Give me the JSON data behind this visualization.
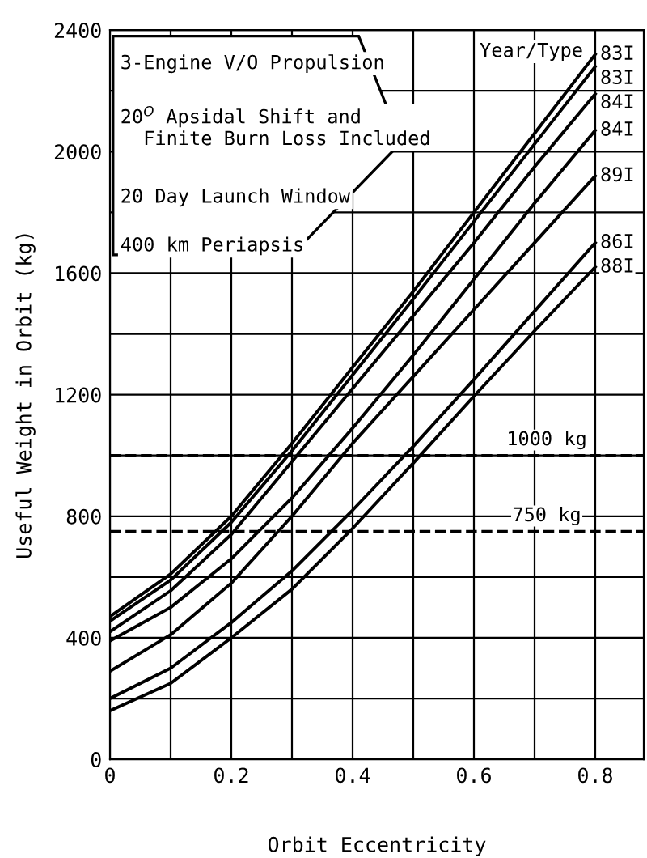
{
  "chart_data": {
    "type": "line",
    "xlabel": "Orbit Eccentricity",
    "ylabel": "Useful Weight in Orbit (kg)",
    "legend_title": "Year/Type",
    "x": [
      0,
      0.1,
      0.2,
      0.3,
      0.4,
      0.5,
      0.6,
      0.7,
      0.8
    ],
    "series": [
      {
        "name": "83I",
        "color": "#000000",
        "values": [
          470,
          610,
          800,
          1040,
          1290,
          1540,
          1800,
          2060,
          2320
        ]
      },
      {
        "name": "83I",
        "color": "#000000",
        "values": [
          455,
          590,
          780,
          1015,
          1265,
          1515,
          1770,
          2025,
          2280
        ]
      },
      {
        "name": "84I",
        "color": "#000000",
        "values": [
          420,
          555,
          740,
          980,
          1220,
          1460,
          1700,
          1950,
          2190
        ]
      },
      {
        "name": "84I",
        "color": "#000000",
        "values": [
          390,
          500,
          660,
          860,
          1090,
          1330,
          1580,
          1830,
          2070
        ]
      },
      {
        "name": "89I",
        "color": "#000000",
        "values": [
          290,
          410,
          580,
          800,
          1040,
          1260,
          1480,
          1700,
          1920
        ]
      },
      {
        "name": "86I",
        "color": "#000000",
        "values": [
          200,
          300,
          450,
          620,
          820,
          1030,
          1250,
          1475,
          1700
        ]
      },
      {
        "name": "88I",
        "color": "#000000",
        "values": [
          160,
          250,
          400,
          560,
          760,
          975,
          1195,
          1410,
          1620
        ]
      }
    ],
    "xlim": [
      0,
      0.88
    ],
    "ylim": [
      0,
      2400
    ],
    "xticks": [
      0,
      {
        "value": 0.1,
        "label": null
      },
      {
        "value": 0.2,
        "label": "0.2"
      },
      {
        "value": 0.3,
        "label": null
      },
      {
        "value": 0.4,
        "label": "0.4"
      },
      {
        "value": 0.5,
        "label": null
      },
      {
        "value": 0.6,
        "label": "0.6"
      },
      {
        "value": 0.7,
        "label": null
      },
      {
        "value": 0.8,
        "label": "0.8"
      }
    ],
    "yticks": [
      0,
      {
        "value": 200,
        "label": null
      },
      400,
      {
        "value": 600,
        "label": null
      },
      800,
      {
        "value": 1000,
        "label": null
      },
      1200,
      {
        "value": 1400,
        "label": null
      },
      1600,
      {
        "value": 1800,
        "label": null
      },
      2000,
      {
        "value": 2200,
        "label": null
      },
      2400
    ],
    "ref_lines": [
      {
        "axis": "y",
        "value": 1000,
        "label": "1000 kg",
        "line_style": "dashed",
        "color": "#000000"
      },
      {
        "axis": "y",
        "value": 750,
        "label": "750 kg",
        "line_style": "dashed",
        "color": "#000000"
      }
    ],
    "annotations": [
      "3-Engine V/O Propulsion",
      "20$^{O}$ Apsidal Shift and\n  Finite Burn Loss Included",
      "20 Day Launch Window",
      "400 km Periapsis"
    ],
    "grid": true,
    "legend": "right",
    "marker": "none",
    "line_style": "solid"
  }
}
